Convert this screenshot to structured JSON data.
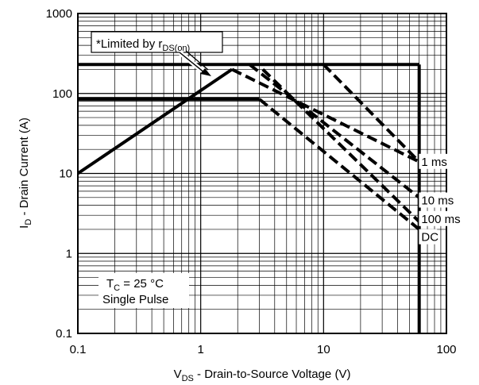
{
  "chart_data": {
    "type": "line",
    "xscale": "log",
    "yscale": "log",
    "xlim": [
      0.1,
      100
    ],
    "ylim": [
      0.1,
      1000
    ],
    "grid": true,
    "x_ticks": [
      {
        "v": 0.1,
        "label": "0.1"
      },
      {
        "v": 1,
        "label": "1"
      },
      {
        "v": 10,
        "label": "10"
      },
      {
        "v": 100,
        "label": "100"
      }
    ],
    "y_ticks": [
      {
        "v": 0.1,
        "label": "0.1"
      },
      {
        "v": 1,
        "label": "1"
      },
      {
        "v": 10,
        "label": "10"
      },
      {
        "v": 100,
        "label": "100"
      },
      {
        "v": 1000,
        "label": "1000"
      }
    ],
    "xlabel": {
      "main": "V",
      "sub": "DS",
      "rest": " - Drain-to-Source Voltage (V)"
    },
    "ylabel": {
      "main": "I",
      "sub": "D",
      "rest": " - Drain Current (A)"
    },
    "limits": [
      {
        "name": "",
        "style": "solid",
        "points": [
          [
            0.1,
            230
          ],
          [
            60,
            230
          ]
        ]
      },
      {
        "name": "",
        "style": "solid",
        "points": [
          [
            0.1,
            85
          ],
          [
            3,
            85
          ]
        ]
      },
      {
        "name": "",
        "style": "solid",
        "points": [
          [
            60,
            230
          ],
          [
            60,
            0.1
          ]
        ]
      }
    ],
    "series": [
      {
        "name": "",
        "style": "solid",
        "points": [
          [
            0.1,
            10
          ],
          [
            1.8,
            200
          ]
        ]
      },
      {
        "name": "1 ms",
        "style": "dashed",
        "points": [
          [
            1.8,
            200
          ],
          [
            60,
            14
          ]
        ]
      },
      {
        "name": "",
        "style": "dashed",
        "points": [
          [
            2.5,
            230
          ],
          [
            60,
            5
          ]
        ]
      },
      {
        "name": "",
        "style": "dashed",
        "points": [
          [
            3.2,
            200
          ],
          [
            60,
            2.5
          ]
        ]
      },
      {
        "name": "",
        "style": "dashed",
        "points": [
          [
            10,
            230
          ],
          [
            60,
            14
          ]
        ]
      },
      {
        "name": "DC",
        "style": "dashed",
        "points": [
          [
            3,
            85
          ],
          [
            60,
            2
          ]
        ]
      }
    ],
    "labels": [
      {
        "text": "1 ms",
        "at": [
          58,
          14
        ]
      },
      {
        "text": "10 ms",
        "at": [
          58,
          4.6
        ]
      },
      {
        "text": "100 ms",
        "at": [
          58,
          2.7
        ]
      },
      {
        "text": "DC",
        "at": [
          58,
          1.6
        ]
      }
    ],
    "annotations": {
      "limited": {
        "main": "*Limited by r",
        "sub": "DS(on)"
      },
      "tc": {
        "main": "T",
        "sub": "C",
        "rest": " = 25 °C"
      },
      "pulse": "Single Pulse"
    }
  }
}
